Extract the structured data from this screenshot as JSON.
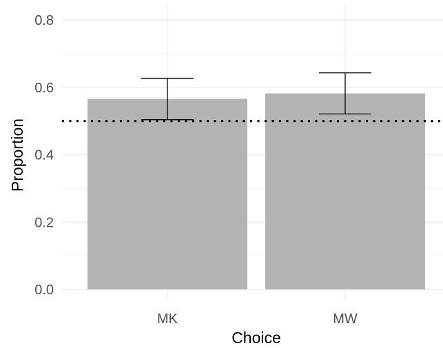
{
  "chart_data": {
    "type": "bar",
    "title": "",
    "xlabel": "Choice",
    "ylabel": "Proportion",
    "categories": [
      "MK",
      "MW"
    ],
    "values": [
      0.566,
      0.582
    ],
    "error_bars": [
      {
        "lower": 0.504,
        "upper": 0.627
      },
      {
        "lower": 0.521,
        "upper": 0.643
      }
    ],
    "reference_line": {
      "y": 0.5,
      "style": "dotted"
    },
    "ylim": [
      0,
      0.8
    ],
    "yticks": [
      0.0,
      0.2,
      0.4,
      0.6,
      0.8
    ],
    "ytick_labels": [
      "0.0",
      "0.2",
      "0.4",
      "0.6",
      "0.8"
    ],
    "grid": true,
    "legend": "none",
    "colors": {
      "bar": "#b3b3b3",
      "errorbar": "#000000",
      "grid": "#ebebeb",
      "reference": "#000000"
    }
  }
}
